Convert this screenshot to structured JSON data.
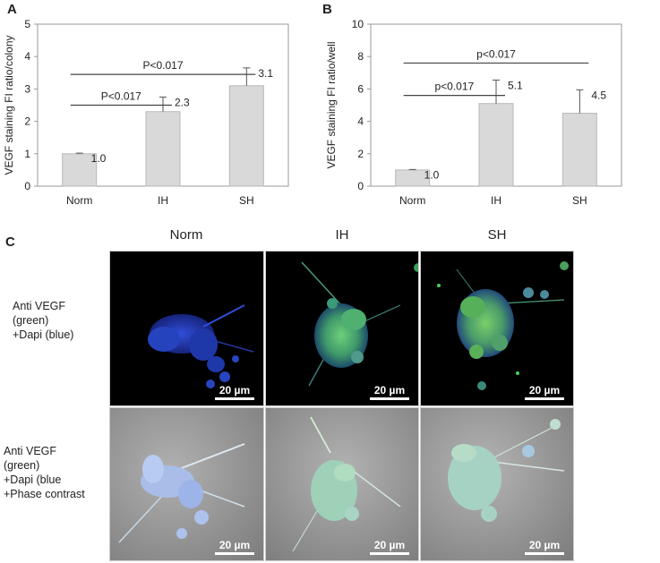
{
  "panels": {
    "a": "A",
    "b": "B",
    "c": "C"
  },
  "chart_data": [
    {
      "type": "bar",
      "ylabel": "VEGF staining FI ratio/colony",
      "categories": [
        "Norm",
        "IH",
        "SH"
      ],
      "values": [
        1.0,
        2.3,
        3.1
      ],
      "value_labels": [
        "1.0",
        "2.3",
        "3.1"
      ],
      "errors": [
        0.02,
        0.45,
        0.55
      ],
      "ylim": [
        0,
        5
      ],
      "yticks": [
        "0",
        "1",
        "2",
        "3",
        "4",
        "5"
      ],
      "comparisons": [
        {
          "from": "Norm",
          "to": "IH",
          "label": "P<0.017",
          "y": 2.5
        },
        {
          "from": "Norm",
          "to": "SH",
          "label": "P<0.017",
          "y": 3.45
        }
      ]
    },
    {
      "type": "bar",
      "ylabel": "VEGF staining FI ratio/well",
      "categories": [
        "Norm",
        "IH",
        "SH"
      ],
      "values": [
        1.0,
        5.1,
        4.5
      ],
      "value_labels": [
        "1.0",
        "5.1",
        "4.5"
      ],
      "errors": [
        0.03,
        1.45,
        1.45
      ],
      "ylim": [
        0,
        10
      ],
      "yticks": [
        "0",
        "2",
        "4",
        "6",
        "8",
        "10"
      ],
      "comparisons": [
        {
          "from": "Norm",
          "to": "IH",
          "label": "p<0.017",
          "y": 5.6
        },
        {
          "from": "Norm",
          "to": "SH",
          "label": "p<0.017",
          "y": 7.6
        }
      ]
    }
  ],
  "images": {
    "columns": [
      "Norm",
      "IH",
      "SH"
    ],
    "row_labels": [
      [
        "Anti VEGF",
        "(green)",
        "+Dapi (blue)"
      ],
      [
        "Anti VEGF",
        "(green)",
        "+Dapi (blue",
        "+Phase contrast"
      ]
    ],
    "scale_label": "20 µm"
  }
}
